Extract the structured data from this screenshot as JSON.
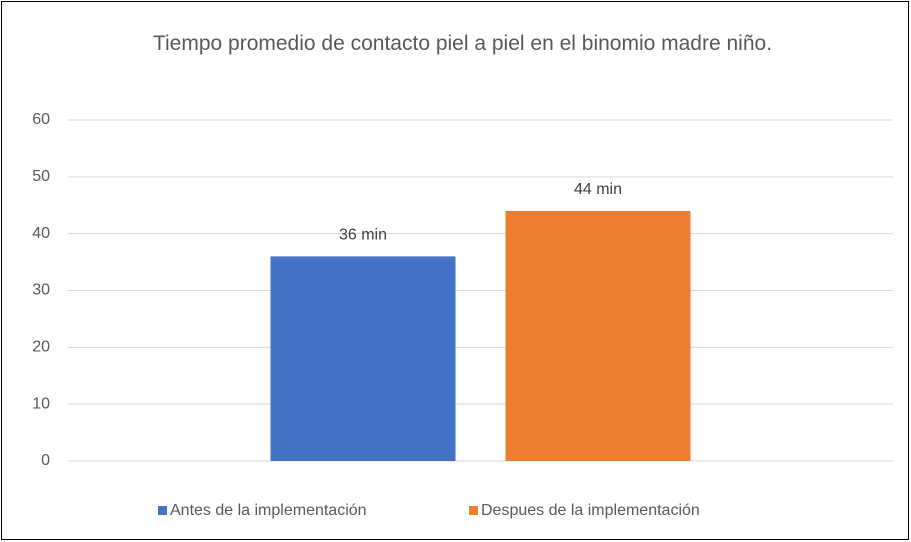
{
  "chart_data": {
    "type": "bar",
    "title": "Tiempo promedio de contacto piel a piel en el binomio madre niño.",
    "categories": [
      null
    ],
    "series": [
      {
        "name": "Antes de la implementación",
        "color": "#4472c4",
        "values": [
          36
        ],
        "value_labels": [
          "36 min"
        ]
      },
      {
        "name": "Despues de la implementación",
        "color": "#ed7d31",
        "values": [
          44
        ],
        "value_labels": [
          "44 min"
        ]
      }
    ],
    "ylim": [
      0,
      60
    ],
    "yticks": [
      0,
      10,
      20,
      30,
      40,
      50,
      60
    ],
    "grid": true,
    "legend": "bottom"
  }
}
